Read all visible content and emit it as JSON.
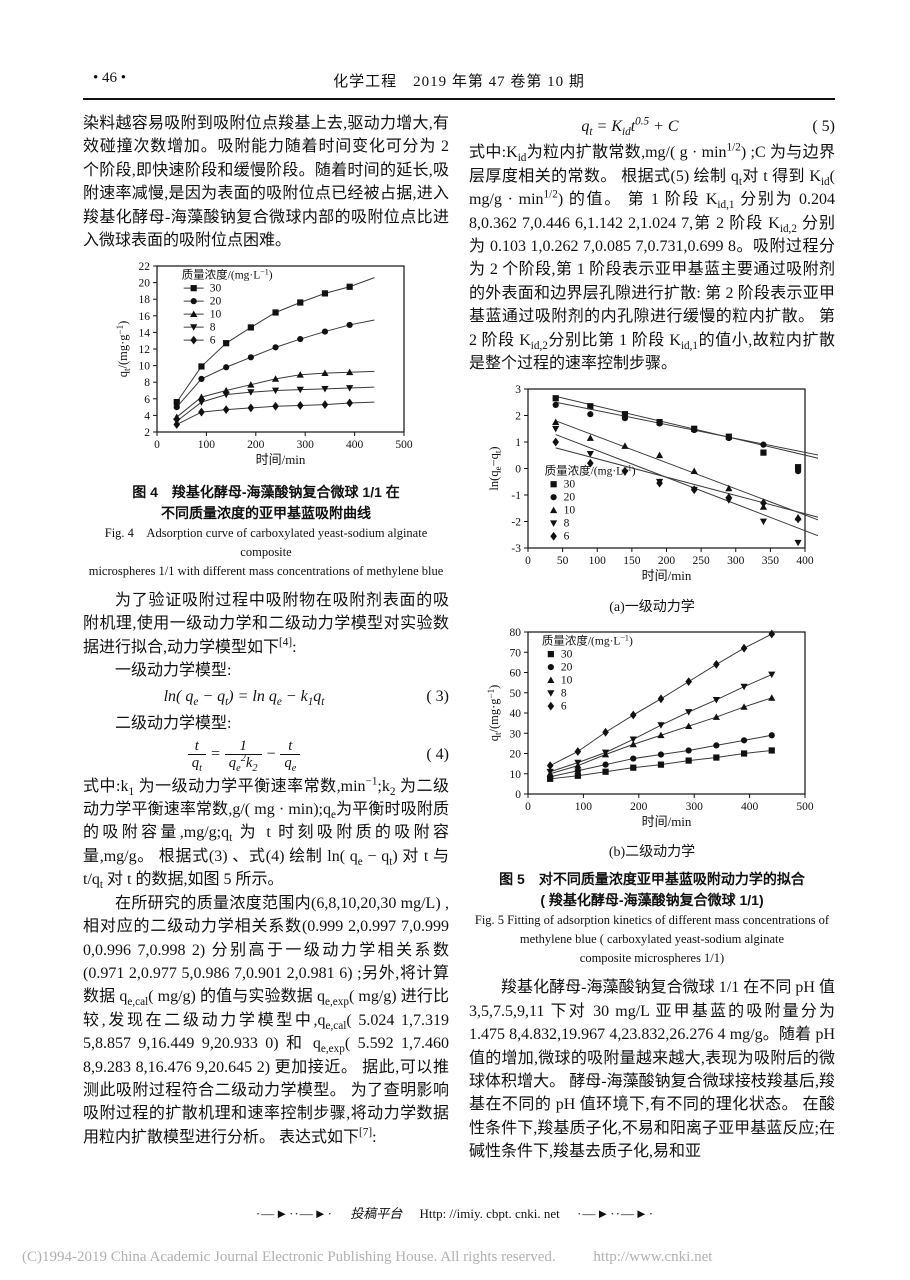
{
  "header": {
    "page_no": "• 46 •",
    "journal": "化学工程　2019 年第 47 卷第 10 期"
  },
  "left": {
    "para1": "染料越容易吸附到吸附位点羧基上去,驱动力增大,有效碰撞次数增加。吸附能力随着时间变化可分为 2 个阶段,即快速阶段和缓慢阶段。随着时间的延长,吸附速率减慢,是因为表面的吸附位点已经被占据,进入羧基化酵母-海藻酸钠复合微球内部的吸附位点比进入微球表面的吸附位点困难。",
    "fig4_caption_zh1": "图 4　羧基化酵母-海藻酸钠复合微球 1/1 在",
    "fig4_caption_zh2": "不同质量浓度的亚甲基蓝吸附曲线",
    "fig4_caption_en1": "Fig. 4　Adsorption curve of carboxylated yeast-sodium alginate composite",
    "fig4_caption_en2": "microspheres 1/1 with different mass concentrations of methylene blue",
    "para2": "为了验证吸附过程中吸附物在吸附剂表面的吸附机理,使用一级动力学和二级动力学模型对实验数据进行拟合,动力学模型如下^{[4]}:",
    "model1": "一级动力学模型:",
    "eq3": "ln( q_{e} − q_{t})  = ln q_{e} − k_{1}q_{t}",
    "eq3_no": "( 3)",
    "model2": "二级动力学模型:",
    "eq4": {
      "n1": "t",
      "d1": "q_{t}",
      "mid": "=",
      "n2": "1",
      "d2": "q_{e}^{2}k_{2}",
      "minus": "−",
      "n3": "t",
      "d3": "q_{e}"
    },
    "eq4_no": "( 4)",
    "para3": "式中:k_{1} 为一级动力学平衡速率常数,min^{−1};k_{2} 为二级动力学平衡速率常数,g/( mg · min);q_{e}为平衡时吸附质的吸附容量,mg/g;q_{t} 为 t 时刻吸附质的吸附容量,mg/g。 根据式(3) 、式(4) 绘制 ln( q_{e} − q_{t}) 对 t 与 t/q_{t} 对 t 的数据,如图 5 所示。",
    "para4": "在所研究的质量浓度范围内(6,8,10,20,30 mg/L) ,相对应的二级动力学相关系数(0.999 2,0.997 7,0.999 0,0.996 7,0.998 2) 分别高于一级动力学相关系数(0.971 2,0.977 5,0.986 7,0.901 2,0.981 6) ;另外,将计算数据 q_{e,cal}( mg/g) 的值与实验数据 q_{e,exp}( mg/g) 进行比较,发现在二级动力学模型中,q_{e,cal}( 5.024 1,7.319 5,8.857 9,16.449 9,20.933 0) 和 q_{e,exp}( 5.592 1,7.460 8,9.283 8,16.476 9,20.645 2) 更加接近。 据此,可以推测此吸附过程符合二级动力学模型。 为了查明影响吸附过程的扩散机理和速率控制步骤,将动力学数据用粒内扩散模型进行分析。 表达式如下^{[7]}:"
  },
  "right": {
    "eq5": "q_{t} = K_{id}t^{0.5} + C",
    "eq5_no": "( 5)",
    "para1": "式中:K_{id}为粒内扩散常数,mg/( g · min^{1/2}) ;C 为与边界层厚度相关的常数。 根据式(5) 绘制 q_{t}对 t 得到 K_{id}( mg/g · min^{1/2}) 的值。 第 1 阶段 K_{id,1} 分别为 0.204 8,0.362 7,0.446 6,1.142 2,1.024 7,第 2 阶段 K_{id,2} 分别为 0.103 1,0.262 7,0.085 7,0.731,0.699 8。吸附过程分为 2 个阶段,第 1 阶段表示亚甲基蓝主要通过吸附剂的外表面和边界层孔隙进行扩散: 第 2 阶段表示亚甲基蓝通过吸附剂的内孔隙进行缓慢的粒内扩散。 第 2 阶段 K_{id,2}分别比第 1 阶段 K_{id,1}的值小,故粒内扩散是整个过程的速率控制步骤。",
    "fig5a_sub": "(a)一级动力学",
    "fig5b_sub": "(b)二级动力学",
    "fig5_caption_zh1": "图 5　对不同质量浓度亚甲基蓝吸附动力学的拟合",
    "fig5_caption_zh2": "( 羧基化酵母-海藻酸钠复合微球 1/1)",
    "fig5_caption_en1": "Fig. 5  Fitting of adsorption kinetics of different mass concentrations of",
    "fig5_caption_en2": "methylene blue ( carboxylated yeast-sodium alginate",
    "fig5_caption_en3": "composite microspheres 1/1)",
    "para2": "羧基化酵母-海藻酸钠复合微球 1/1 在不同 pH 值 3,5,7.5,9,11 下对 30 mg/L 亚甲基蓝的吸附量分为 1.475 8,4.832,19.967 4,23.832,26.276 4 mg/g。随着 pH 值的增加,微球的吸附量越来越大,表现为吸附后的微球体积增大。 酵母-海藻酸钠复合微球接枝羧基后,羧基在不同的 pH 值环境下,有不同的理化状态。 在酸性条件下,羧基质子化,不易和阳离子亚甲基蓝反应;在碱性条件下,羧基去质子化,易和亚"
  },
  "footer": {
    "divider_left": "·—►··—►·",
    "platform": "投稿平台",
    "url": "Http: //imiy. cbpt. cnki. net",
    "divider_right": "·—►··—►·"
  },
  "copyright": {
    "text": "(C)1994-2019 China Academic Journal Electronic Publishing House. All rights reserved.",
    "url": "http://www.cnki.net"
  },
  "chart_data": [
    {
      "id": "fig4",
      "type": "line",
      "title": "羧基化酵母-海藻酸钠复合微球 1/1 在不同质量浓度的亚甲基蓝吸附曲线",
      "xlabel": "时间/min",
      "ylabel": "q_{t}/(mg·g^{−1})",
      "xlim": [
        0,
        500
      ],
      "ylim": [
        2,
        22
      ],
      "xticks": [
        0,
        100,
        200,
        300,
        400,
        500
      ],
      "yticks": [
        2,
        4,
        6,
        8,
        10,
        12,
        14,
        16,
        18,
        20,
        22
      ],
      "grid": false,
      "legend_title": "质量浓度/(mg·L^{−1})",
      "legend_pos": "top-left",
      "connect": true,
      "x": [
        40,
        90,
        140,
        190,
        240,
        290,
        340,
        390
      ],
      "series": [
        {
          "name": "30",
          "marker": "square",
          "values": [
            5.6,
            9.9,
            12.7,
            14.6,
            16.4,
            17.6,
            18.7,
            19.5
          ],
          "ext": [
            440,
            20.6
          ]
        },
        {
          "name": "20",
          "marker": "circle",
          "values": [
            5.0,
            8.4,
            9.8,
            11.0,
            12.2,
            13.2,
            14.1,
            14.9
          ],
          "ext": [
            440,
            15.5
          ]
        },
        {
          "name": "10",
          "marker": "tri-up",
          "values": [
            3.8,
            6.2,
            7.0,
            7.7,
            8.4,
            8.9,
            9.1,
            9.2
          ],
          "ext": [
            440,
            9.3
          ]
        },
        {
          "name": "8",
          "marker": "tri-down",
          "values": [
            3.3,
            5.6,
            6.5,
            6.8,
            7.0,
            7.1,
            7.2,
            7.3
          ],
          "ext": [
            440,
            7.4
          ]
        },
        {
          "name": "6",
          "marker": "diamond",
          "values": [
            2.9,
            4.4,
            4.7,
            4.9,
            5.1,
            5.2,
            5.3,
            5.5
          ],
          "ext": [
            440,
            5.6
          ]
        }
      ]
    },
    {
      "id": "fig5a",
      "type": "scatter",
      "title": "(a)一级动力学 — 对不同质量浓度亚甲基蓝吸附动力学的拟合",
      "xlabel": "时间/min",
      "ylabel": "ln(q_{e}−q_{t})",
      "xlim": [
        0,
        400
      ],
      "ylim": [
        -3,
        3
      ],
      "xticks": [
        0,
        50,
        100,
        150,
        200,
        250,
        300,
        350,
        400
      ],
      "yticks": [
        -3,
        -2,
        -1,
        0,
        1,
        2,
        3
      ],
      "grid": false,
      "legend_title": "质量浓度/(mg·L^{−1})",
      "legend_pos": "bottom-left",
      "connect": false,
      "x": [
        40,
        90,
        140,
        190,
        240,
        290,
        340,
        390
      ],
      "series": [
        {
          "name": "30",
          "marker": "square",
          "values": [
            2.65,
            2.35,
            2.05,
            1.75,
            1.5,
            1.2,
            0.6,
            0.05
          ],
          "fit": [
            40,
            2.72,
            430,
            0.32
          ]
        },
        {
          "name": "20",
          "marker": "circle",
          "values": [
            2.4,
            2.05,
            1.9,
            1.7,
            1.45,
            1.15,
            0.9,
            -0.1
          ],
          "fit": [
            40,
            2.5,
            430,
            0.45
          ]
        },
        {
          "name": "10",
          "marker": "tri-up",
          "values": [
            1.75,
            1.15,
            0.85,
            0.5,
            -0.1,
            -0.75,
            -1.45,
            -1.85
          ],
          "fit": [
            40,
            1.8,
            425,
            -2.0
          ]
        },
        {
          "name": "8",
          "marker": "tri-down",
          "values": [
            1.5,
            0.55,
            -0.15,
            -0.5,
            -0.8,
            -1.2,
            -2.0,
            -2.8
          ],
          "fit": [
            40,
            1.28,
            425,
            -2.6
          ]
        },
        {
          "name": "6",
          "marker": "diamond",
          "values": [
            1.0,
            0.2,
            -0.1,
            -0.55,
            -0.8,
            -1.1,
            -1.3,
            -1.9
          ],
          "fit": [
            40,
            0.78,
            425,
            -1.88
          ]
        }
      ]
    },
    {
      "id": "fig5b",
      "type": "line",
      "title": "(b)二级动力学 — 对不同质量浓度亚甲基蓝吸附动力学的拟合",
      "xlabel": "时间/min",
      "ylabel": "q_{t}/(mg·g^{−1})",
      "xlim": [
        0,
        500
      ],
      "ylim": [
        0,
        80
      ],
      "xticks": [
        0,
        100,
        200,
        300,
        400,
        500
      ],
      "yticks": [
        0,
        10,
        20,
        30,
        40,
        50,
        60,
        70,
        80
      ],
      "grid": false,
      "legend_title": "质量浓度/(mg·L^{−1})",
      "legend_pos": "top-left",
      "connect": true,
      "x": [
        40,
        90,
        140,
        190,
        240,
        290,
        340,
        390,
        440
      ],
      "series": [
        {
          "name": "30",
          "marker": "square",
          "values": [
            7.5,
            9,
            11,
            13,
            14.5,
            16.5,
            18,
            20,
            21.5
          ]
        },
        {
          "name": "20",
          "marker": "circle",
          "values": [
            8.5,
            11.5,
            14.5,
            17.5,
            19.5,
            21.5,
            24,
            26.5,
            29
          ]
        },
        {
          "name": "10",
          "marker": "tri-up",
          "values": [
            10,
            14,
            19.5,
            24.5,
            29,
            33.5,
            38,
            43,
            47.5
          ]
        },
        {
          "name": "8",
          "marker": "tri-down",
          "values": [
            11,
            15.5,
            20.5,
            27,
            34,
            40.5,
            46.5,
            53,
            59
          ]
        },
        {
          "name": "6",
          "marker": "diamond",
          "values": [
            14,
            21,
            30.5,
            39,
            47,
            55.5,
            64,
            72,
            79
          ]
        }
      ]
    }
  ]
}
